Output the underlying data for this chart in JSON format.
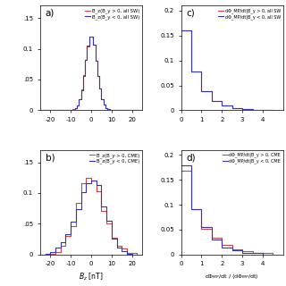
{
  "panel_a": {
    "label": "a)",
    "legend": [
      "B_z(B_y > 0, all SW)",
      "B_z(B_y < 0, all SW)"
    ],
    "colors": [
      "#cc4444",
      "#3333bb"
    ],
    "xlim": [
      -25,
      25
    ],
    "ylim": [
      0,
      0.17
    ],
    "yticks": [
      0,
      0.05,
      0.1,
      0.15
    ],
    "ytick_labels": [
      "0",
      ".05",
      "0.1",
      ".15"
    ],
    "xticks": [
      -20,
      -10,
      0,
      10,
      20
    ]
  },
  "panel_b": {
    "label": "b)",
    "legend": [
      "B_z(B_y > 0, CME)",
      "B_z(B_y < 0, CME)"
    ],
    "colors": [
      "#cc4444",
      "#3333bb"
    ],
    "xlim": [
      -25,
      25
    ],
    "ylim": [
      0,
      0.17
    ],
    "yticks": [
      0,
      0.05,
      0.1,
      0.15
    ],
    "ytick_labels": [
      "0",
      ".05",
      "0.1",
      ".15"
    ],
    "xticks": [
      -20,
      -10,
      0,
      10,
      20
    ],
    "xlabel": "B_z [nT]"
  },
  "panel_c": {
    "label": "c)",
    "legend": [
      "dΦ_MP/dt|B_y > 0, all SW",
      "dΦ_MP/dt|B_y < 0, all SW"
    ],
    "colors": [
      "#cc4444",
      "#3333bb"
    ],
    "xlim": [
      0,
      5
    ],
    "ylim": [
      0,
      0.21
    ],
    "yticks": [
      0,
      0.05,
      0.1,
      0.15,
      0.2
    ],
    "ytick_labels": [
      "0",
      "0.05",
      "0.1",
      "0.15",
      "0.2"
    ],
    "xticks": [
      0,
      1,
      2,
      3,
      4
    ]
  },
  "panel_d": {
    "label": "d)",
    "legend": [
      "dΦ_MP/dt|B_y > 0, CME",
      "dΦ_MP/dt|B_y < 0, CME"
    ],
    "colors": [
      "#cc4444",
      "#3333bb"
    ],
    "xlim": [
      0,
      5
    ],
    "ylim": [
      0,
      0.21
    ],
    "yticks": [
      0,
      0.05,
      0.1,
      0.15,
      0.2
    ],
    "ytick_labels": [
      "0",
      "0.05",
      "0.1",
      "0.15",
      "0.2"
    ],
    "xticks": [
      0,
      1,
      2,
      3,
      4
    ],
    "xlabel": "dΦ_MP/dt / ⟨dΦ_MP/dt⟩"
  },
  "bg_color": "#ffffff"
}
